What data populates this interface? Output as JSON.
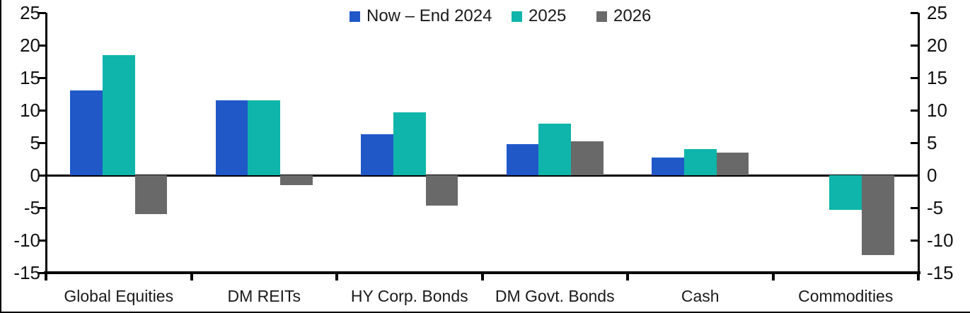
{
  "legend": [
    {
      "label": "Now – End 2024",
      "color": "#2058C8"
    },
    {
      "label": "2025",
      "color": "#0FB5AA"
    },
    {
      "label": "2026",
      "color": "#696969"
    }
  ],
  "chart_data": {
    "type": "bar",
    "title": "",
    "categories": [
      "Global Equities",
      "DM REITs",
      "HY Corp. Bonds",
      "DM Govt. Bonds",
      "Cash",
      "Commodities"
    ],
    "series": [
      {
        "name": "Now – End 2024",
        "color": "#2058C8",
        "values": [
          13.0,
          11.5,
          6.3,
          4.8,
          2.7,
          0.0
        ]
      },
      {
        "name": "2025",
        "color": "#0FB5AA",
        "values": [
          18.5,
          11.5,
          9.7,
          7.9,
          4.0,
          -5.3
        ]
      },
      {
        "name": "2026",
        "color": "#696969",
        "values": [
          -6.0,
          -1.5,
          -4.7,
          5.2,
          3.5,
          -12.3
        ]
      }
    ],
    "y_ticks": [
      25,
      20,
      15,
      10,
      5,
      0,
      -5,
      -10,
      -15
    ],
    "ylim": [
      -15,
      25
    ],
    "xlabel": "",
    "ylabel": "",
    "grid": false,
    "legend_position": "top",
    "dual_y_axis": true,
    "zero_line": true,
    "axis_color": "#000000"
  }
}
